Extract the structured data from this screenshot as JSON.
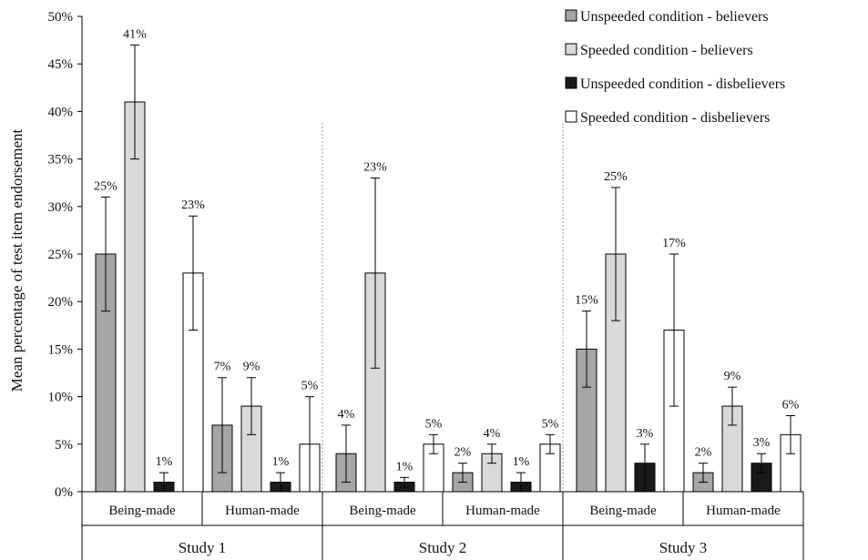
{
  "chart_data": {
    "type": "bar",
    "ylabel": "Mean percentage of test item endorsement",
    "ylim": [
      0,
      50
    ],
    "yticks": [
      "0%",
      "5%",
      "10%",
      "15%",
      "20%",
      "25%",
      "30%",
      "35%",
      "40%",
      "45%",
      "50%"
    ],
    "grid": false,
    "legend_position": "top-right",
    "series": [
      {
        "name": "Unspeeded condition - believers",
        "color": "#a6a6a6"
      },
      {
        "name": "Speeded condition - believers",
        "color": "#d9d9d9"
      },
      {
        "name": "Unspeeded condition - disbelievers",
        "color": "#1a1a1a"
      },
      {
        "name": "Speeded condition - disbelievers",
        "color": "#ffffff"
      }
    ],
    "studies": [
      {
        "label": "Study 1",
        "groups": [
          {
            "label": "Being-made",
            "values": [
              25,
              41,
              1,
              23
            ],
            "labels": [
              "25%",
              "41%",
              "1%",
              "23%"
            ],
            "err_low": [
              19,
              35,
              0,
              17
            ],
            "err_high": [
              31,
              47,
              2,
              29
            ]
          },
          {
            "label": "Human-made",
            "values": [
              7,
              9,
              1,
              5
            ],
            "labels": [
              "7%",
              "9%",
              "1%",
              "5%"
            ],
            "err_low": [
              2,
              6,
              0,
              0
            ],
            "err_high": [
              12,
              12,
              2,
              10
            ]
          }
        ]
      },
      {
        "label": "Study 2",
        "groups": [
          {
            "label": "Being-made",
            "values": [
              4,
              23,
              1,
              5
            ],
            "labels": [
              "4%",
              "23%",
              "1%",
              "5%"
            ],
            "err_low": [
              1,
              13,
              0.5,
              4
            ],
            "err_high": [
              7,
              33,
              1.5,
              6
            ]
          },
          {
            "label": "Human-made",
            "values": [
              2,
              4,
              1,
              5
            ],
            "labels": [
              "2%",
              "4%",
              "1%",
              "5%"
            ],
            "err_low": [
              1,
              3,
              0,
              4
            ],
            "err_high": [
              3,
              5,
              2,
              6
            ]
          }
        ]
      },
      {
        "label": "Study 3",
        "groups": [
          {
            "label": "Being-made",
            "values": [
              15,
              25,
              3,
              17
            ],
            "labels": [
              "15%",
              "25%",
              "3%",
              "17%"
            ],
            "err_low": [
              11,
              18,
              0,
              9
            ],
            "err_high": [
              19,
              32,
              5,
              25
            ]
          },
          {
            "label": "Human-made",
            "values": [
              2,
              9,
              3,
              6
            ],
            "labels": [
              "2%",
              "9%",
              "3%",
              "6%"
            ],
            "err_low": [
              1,
              7,
              2,
              4
            ],
            "err_high": [
              3,
              11,
              4,
              8
            ]
          }
        ]
      }
    ]
  }
}
